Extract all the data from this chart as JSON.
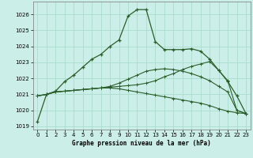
{
  "title": "Graphe pression niveau de la mer (hPa)",
  "background_color": "#cceee8",
  "grid_color": "#aaddcc",
  "line_color": "#2a5e2a",
  "xlim": [
    -0.5,
    23.5
  ],
  "ylim": [
    1018.8,
    1026.8
  ],
  "yticks": [
    1019,
    1020,
    1021,
    1022,
    1023,
    1024,
    1025,
    1026
  ],
  "xticks": [
    0,
    1,
    2,
    3,
    4,
    5,
    6,
    7,
    8,
    9,
    10,
    11,
    12,
    13,
    14,
    15,
    16,
    17,
    18,
    19,
    20,
    21,
    22,
    23
  ],
  "series": [
    [
      1019.3,
      1021.0,
      1021.2,
      1021.8,
      1022.2,
      1022.7,
      1023.2,
      1023.5,
      1024.0,
      1024.4,
      1025.9,
      1026.3,
      1026.3,
      1024.3,
      1023.8,
      1023.8,
      1023.8,
      1023.85,
      1023.7,
      1023.2,
      1022.5,
      1021.8,
      1020.9,
      1019.8
    ],
    [
      1020.9,
      1021.0,
      1021.15,
      1021.2,
      1021.25,
      1021.3,
      1021.35,
      1021.4,
      1021.45,
      1021.5,
      1021.55,
      1021.6,
      1021.7,
      1021.85,
      1022.1,
      1022.3,
      1022.55,
      1022.75,
      1022.9,
      1023.05,
      1022.5,
      1021.85,
      1020.0,
      1019.8
    ],
    [
      1020.9,
      1021.0,
      1021.15,
      1021.2,
      1021.25,
      1021.3,
      1021.35,
      1021.4,
      1021.4,
      1021.35,
      1021.25,
      1021.15,
      1021.05,
      1020.95,
      1020.85,
      1020.75,
      1020.65,
      1020.55,
      1020.45,
      1020.3,
      1020.1,
      1019.95,
      1019.85,
      1019.8
    ],
    [
      1020.9,
      1021.0,
      1021.15,
      1021.2,
      1021.25,
      1021.3,
      1021.35,
      1021.4,
      1021.5,
      1021.7,
      1021.95,
      1022.2,
      1022.45,
      1022.55,
      1022.6,
      1022.55,
      1022.45,
      1022.3,
      1022.1,
      1021.85,
      1021.5,
      1021.15,
      1020.0,
      1019.8
    ]
  ]
}
